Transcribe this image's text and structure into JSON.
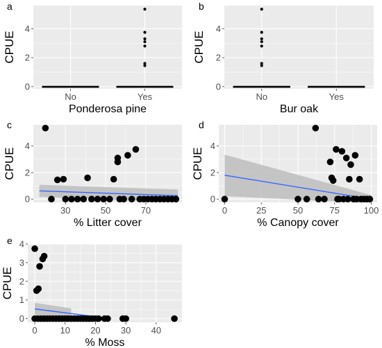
{
  "chart_data": [
    {
      "panel": "a",
      "type": "boxplot",
      "xlabel": "Ponderosa pine",
      "ylabel": "CPUE",
      "categories": [
        "No",
        "Yes"
      ],
      "ylim": [
        -0.15,
        5.6
      ],
      "yticks": [
        0,
        2,
        4
      ],
      "boxes": [
        {
          "category": "No",
          "q1": 0,
          "median": 0,
          "q3": 0,
          "whisker_low": 0,
          "whisker_high": 0,
          "outliers": []
        },
        {
          "category": "Yes",
          "q1": 0,
          "median": 0,
          "q3": 0,
          "whisker_low": 0,
          "whisker_high": 0,
          "outliers": [
            5.35,
            3.75,
            3.3,
            3.1,
            2.8,
            1.6,
            1.45
          ]
        }
      ]
    },
    {
      "panel": "b",
      "type": "boxplot",
      "xlabel": "Bur oak",
      "ylabel": "CPUE",
      "categories": [
        "No",
        "Yes"
      ],
      "ylim": [
        -0.15,
        5.6
      ],
      "yticks": [
        0,
        2,
        4
      ],
      "boxes": [
        {
          "category": "No",
          "q1": 0,
          "median": 0,
          "q3": 0,
          "whisker_low": 0,
          "whisker_high": 0,
          "outliers": [
            5.35,
            3.75,
            3.3,
            3.1,
            2.8,
            1.6,
            1.45
          ]
        },
        {
          "category": "Yes",
          "q1": 0,
          "median": 0,
          "q3": 0,
          "whisker_low": 0,
          "whisker_high": 0,
          "outliers": []
        }
      ]
    },
    {
      "panel": "c",
      "type": "scatter",
      "xlabel": "% Litter cover",
      "ylabel": "CPUE",
      "xlim": [
        14,
        88
      ],
      "ylim": [
        -0.25,
        5.6
      ],
      "xticks": [
        30,
        50,
        70
      ],
      "yticks": [
        0,
        2,
        4
      ],
      "points": [
        [
          20,
          5.35
        ],
        [
          23,
          0
        ],
        [
          26,
          1.45
        ],
        [
          29,
          1.5
        ],
        [
          30,
          0
        ],
        [
          33,
          0
        ],
        [
          36,
          0
        ],
        [
          39,
          0
        ],
        [
          41,
          1.6
        ],
        [
          43,
          0
        ],
        [
          46,
          0
        ],
        [
          49,
          0
        ],
        [
          52,
          0
        ],
        [
          54,
          1.5
        ],
        [
          56,
          3.1
        ],
        [
          56,
          2.8
        ],
        [
          57,
          0
        ],
        [
          59,
          0
        ],
        [
          61,
          3.3
        ],
        [
          63,
          0
        ],
        [
          65,
          3.75
        ],
        [
          67,
          0
        ],
        [
          69,
          0
        ],
        [
          71,
          0
        ],
        [
          73,
          0
        ],
        [
          75,
          0
        ],
        [
          77,
          0
        ],
        [
          79,
          0
        ],
        [
          81,
          0
        ],
        [
          83,
          0
        ],
        [
          85,
          0
        ]
      ],
      "fit": {
        "x": [
          17,
          86
        ],
        "y": [
          0.62,
          0.26
        ]
      },
      "band": {
        "x": [
          17,
          86
        ],
        "upper": [
          1.08,
          0.72
        ],
        "lower": [
          0.16,
          -0.2
        ]
      }
    },
    {
      "panel": "d",
      "type": "scatter",
      "xlabel": "% Canopy cover",
      "ylabel": "CPUE",
      "xlim": [
        -4,
        104
      ],
      "ylim": [
        -0.25,
        5.6
      ],
      "xticks": [
        0,
        25,
        50,
        75,
        100
      ],
      "yticks": [
        0,
        2,
        4
      ],
      "points": [
        [
          0,
          0
        ],
        [
          50,
          0
        ],
        [
          56,
          0
        ],
        [
          62,
          5.35
        ],
        [
          64,
          0
        ],
        [
          68,
          0
        ],
        [
          72,
          2.8
        ],
        [
          73,
          1.6
        ],
        [
          74,
          1.4
        ],
        [
          76,
          3.75
        ],
        [
          77,
          0
        ],
        [
          78,
          0
        ],
        [
          80,
          3.6
        ],
        [
          81,
          0
        ],
        [
          83,
          3.1
        ],
        [
          84,
          0
        ],
        [
          85,
          1.5
        ],
        [
          86,
          2.6
        ],
        [
          88,
          0
        ],
        [
          89,
          3.3
        ],
        [
          90,
          0
        ],
        [
          92,
          1.5
        ],
        [
          93,
          0
        ],
        [
          95,
          0
        ],
        [
          97,
          0
        ],
        [
          99,
          0
        ]
      ],
      "fit": {
        "x": [
          0,
          100
        ],
        "y": [
          1.8,
          0
        ]
      },
      "band": {
        "x": [
          0,
          100
        ],
        "upper": [
          3.35,
          0.3
        ],
        "lower": [
          0.22,
          -0.3
        ]
      }
    },
    {
      "panel": "e",
      "type": "scatter",
      "xlabel": "% Moss",
      "ylabel": "CPUE",
      "xlim": [
        -2.3,
        48.5
      ],
      "ylim": [
        -0.2,
        4.0
      ],
      "xticks": [
        0,
        10,
        20,
        30,
        40
      ],
      "yticks": [
        0,
        1,
        2,
        3,
        4
      ],
      "points": [
        [
          0,
          3.75
        ],
        [
          0.6,
          1.5
        ],
        [
          1.2,
          1.6
        ],
        [
          1.6,
          2.8
        ],
        [
          2.6,
          3.2
        ],
        [
          3.1,
          3.35
        ],
        [
          0,
          0
        ],
        [
          1,
          0
        ],
        [
          2,
          0
        ],
        [
          3,
          0
        ],
        [
          4,
          0
        ],
        [
          5,
          0
        ],
        [
          6,
          0
        ],
        [
          7,
          0
        ],
        [
          8,
          0
        ],
        [
          9,
          0
        ],
        [
          10,
          0
        ],
        [
          11,
          0
        ],
        [
          12,
          0
        ],
        [
          13,
          0
        ],
        [
          14,
          0
        ],
        [
          15,
          0
        ],
        [
          16,
          0
        ],
        [
          17,
          0
        ],
        [
          18,
          0
        ],
        [
          19,
          0
        ],
        [
          20,
          0
        ],
        [
          21,
          0
        ],
        [
          23,
          0
        ],
        [
          24,
          0
        ],
        [
          29,
          0
        ],
        [
          30,
          0
        ],
        [
          46,
          0
        ]
      ],
      "fit": {
        "x": [
          0,
          24
        ],
        "y": [
          0.52,
          0.02
        ]
      },
      "band": {
        "x": [
          0,
          12
        ],
        "upper": [
          0.85,
          0.55
        ],
        "lower": [
          0.2,
          0.05
        ]
      }
    }
  ],
  "colors": {
    "panel_bg": "#ebebeb",
    "grid": "#ffffff",
    "point": "#000000",
    "fit_line": "#3366ff",
    "band": "#bdbdbd"
  }
}
